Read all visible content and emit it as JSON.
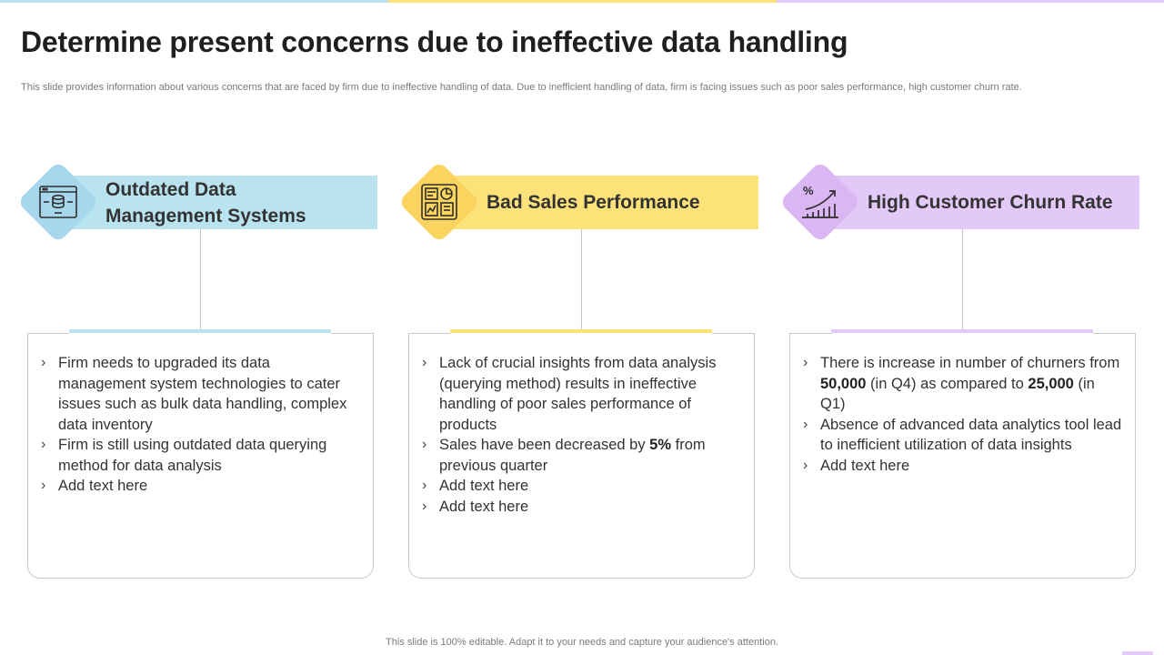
{
  "slide": {
    "title": "Determine present concerns due to ineffective data handling",
    "subtitle": "This slide provides information about various concerns that are faced by firm due to ineffective handling of data. Due to inefficient handling of data, firm is facing issues such as poor sales performance, high customer churn rate.",
    "footer": "This slide is 100% editable. Adapt it to your needs and capture your audience's attention."
  },
  "colors": {
    "blue": "#b9e3ee",
    "yellow": "#fde27a",
    "purple": "#e3c9f7",
    "diamond_blue": "#a6d7eb",
    "diamond_yellow": "#fbd35f",
    "diamond_purple": "#dab7f3"
  },
  "columns": [
    {
      "heading_line1": "Outdated Data",
      "heading_line2": "Management Systems",
      "icon": "database-window-icon",
      "bullets": [
        {
          "text": "Firm needs to upgraded its data management system technologies to cater issues such as bulk data handling, complex data inventory"
        },
        {
          "text": "Firm is still using outdated data querying method for data analysis"
        },
        {
          "text": "Add text here"
        }
      ]
    },
    {
      "heading": "Bad Sales Performance",
      "icon": "sales-dashboard-icon",
      "bullets": [
        {
          "text": "Lack of crucial insights from data analysis (querying method) results in ineffective handling of poor sales performance of products"
        },
        {
          "pre": "Sales have been decreased by ",
          "bold": "5%",
          "post": " from previous quarter"
        },
        {
          "text": "Add text here"
        },
        {
          "text": "Add text here"
        }
      ]
    },
    {
      "heading": "High Customer Churn Rate",
      "icon": "percent-growth-chart-icon",
      "bullets": [
        {
          "pre": "There is increase in number of churners from ",
          "bold1": "50,000",
          "mid": " (in Q4) as compared to ",
          "bold2": "25,000",
          "post": " (in Q1)"
        },
        {
          "text": "Absence of advanced data analytics tool lead to inefficient utilization of data insights"
        },
        {
          "text": "Add text here"
        }
      ]
    }
  ],
  "bullet_marker": "›"
}
